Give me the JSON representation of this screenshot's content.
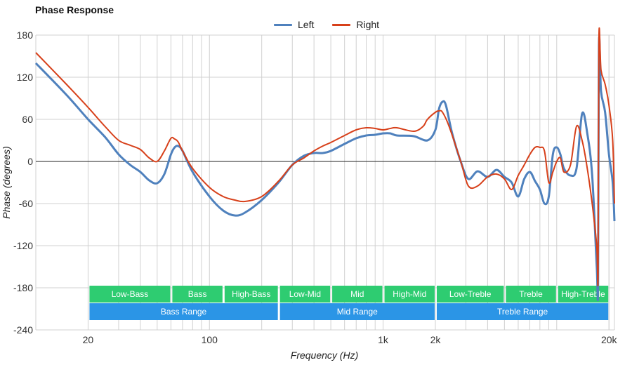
{
  "colors": {
    "left": "#4f81bd",
    "right": "#d7401a",
    "band_green": "#2ecc71",
    "band_blue": "#2b95e6",
    "grid": "#d0d0d0"
  },
  "chart_data": {
    "type": "line",
    "title": "Phase Response",
    "xlabel": "Frequency (Hz)",
    "ylabel": "Phase (degrees)",
    "x_scale": "log",
    "xlim": [
      10,
      21500
    ],
    "ylim": [
      -240,
      180
    ],
    "yticks": [
      180,
      120,
      60,
      0,
      -60,
      -120,
      -180,
      -240
    ],
    "xticks": [
      {
        "value": 20,
        "label": "20"
      },
      {
        "value": 100,
        "label": "100"
      },
      {
        "value": 1000,
        "label": "1k"
      },
      {
        "value": 2000,
        "label": "2k"
      },
      {
        "value": 20000,
        "label": "20k"
      }
    ],
    "legend_position": "top-center",
    "grid": true,
    "series": [
      {
        "name": "Left",
        "points": [
          [
            10,
            140
          ],
          [
            15,
            95
          ],
          [
            20,
            60
          ],
          [
            25,
            35
          ],
          [
            30,
            10
          ],
          [
            35,
            -5
          ],
          [
            40,
            -15
          ],
          [
            45,
            -27
          ],
          [
            50,
            -31
          ],
          [
            55,
            -18
          ],
          [
            60,
            10
          ],
          [
            63,
            20
          ],
          [
            66,
            22
          ],
          [
            70,
            15
          ],
          [
            80,
            -15
          ],
          [
            100,
            -50
          ],
          [
            120,
            -70
          ],
          [
            140,
            -77
          ],
          [
            160,
            -73
          ],
          [
            200,
            -55
          ],
          [
            250,
            -30
          ],
          [
            300,
            -5
          ],
          [
            350,
            8
          ],
          [
            400,
            12
          ],
          [
            450,
            12
          ],
          [
            500,
            15
          ],
          [
            600,
            25
          ],
          [
            700,
            33
          ],
          [
            800,
            37
          ],
          [
            900,
            38
          ],
          [
            1000,
            40
          ],
          [
            1100,
            40
          ],
          [
            1200,
            37
          ],
          [
            1500,
            36
          ],
          [
            1800,
            30
          ],
          [
            2000,
            45
          ],
          [
            2100,
            75
          ],
          [
            2200,
            85
          ],
          [
            2300,
            80
          ],
          [
            2500,
            40
          ],
          [
            2800,
            0
          ],
          [
            3100,
            -25
          ],
          [
            3500,
            -14
          ],
          [
            4000,
            -22
          ],
          [
            4500,
            -12
          ],
          [
            5000,
            -22
          ],
          [
            5500,
            -30
          ],
          [
            6000,
            -50
          ],
          [
            6500,
            -25
          ],
          [
            7000,
            -15
          ],
          [
            7500,
            -28
          ],
          [
            8000,
            -40
          ],
          [
            8500,
            -60
          ],
          [
            9000,
            -50
          ],
          [
            9500,
            10
          ],
          [
            10000,
            20
          ],
          [
            10500,
            10
          ],
          [
            11000,
            -10
          ],
          [
            12000,
            -20
          ],
          [
            13000,
            -10
          ],
          [
            14000,
            68
          ],
          [
            15000,
            40
          ],
          [
            16000,
            -20
          ],
          [
            17000,
            -150
          ],
          [
            17300,
            -175
          ],
          [
            17500,
            165
          ],
          [
            18000,
            100
          ],
          [
            19000,
            70
          ],
          [
            20000,
            10
          ],
          [
            21000,
            -30
          ],
          [
            21500,
            -85
          ]
        ]
      },
      {
        "name": "Right",
        "points": [
          [
            10,
            155
          ],
          [
            15,
            110
          ],
          [
            20,
            77
          ],
          [
            25,
            50
          ],
          [
            30,
            30
          ],
          [
            35,
            23
          ],
          [
            40,
            17
          ],
          [
            45,
            5
          ],
          [
            50,
            0
          ],
          [
            55,
            15
          ],
          [
            60,
            33
          ],
          [
            63,
            32
          ],
          [
            66,
            28
          ],
          [
            70,
            15
          ],
          [
            80,
            -10
          ],
          [
            100,
            -37
          ],
          [
            120,
            -50
          ],
          [
            140,
            -55
          ],
          [
            160,
            -57
          ],
          [
            200,
            -50
          ],
          [
            250,
            -28
          ],
          [
            300,
            -5
          ],
          [
            350,
            5
          ],
          [
            400,
            15
          ],
          [
            450,
            22
          ],
          [
            500,
            27
          ],
          [
            600,
            37
          ],
          [
            700,
            45
          ],
          [
            800,
            48
          ],
          [
            900,
            47
          ],
          [
            1000,
            45
          ],
          [
            1100,
            47
          ],
          [
            1200,
            48
          ],
          [
            1500,
            43
          ],
          [
            1700,
            50
          ],
          [
            1800,
            60
          ],
          [
            2000,
            70
          ],
          [
            2100,
            72
          ],
          [
            2200,
            70
          ],
          [
            2400,
            50
          ],
          [
            2800,
            0
          ],
          [
            3100,
            -35
          ],
          [
            3500,
            -35
          ],
          [
            4000,
            -22
          ],
          [
            4500,
            -18
          ],
          [
            5000,
            -25
          ],
          [
            5500,
            -40
          ],
          [
            6000,
            -20
          ],
          [
            6500,
            -5
          ],
          [
            7000,
            10
          ],
          [
            7500,
            20
          ],
          [
            8000,
            20
          ],
          [
            8500,
            15
          ],
          [
            9000,
            -30
          ],
          [
            9500,
            -15
          ],
          [
            10000,
            0
          ],
          [
            10500,
            5
          ],
          [
            11000,
            -15
          ],
          [
            12000,
            -5
          ],
          [
            13000,
            50
          ],
          [
            14000,
            30
          ],
          [
            15000,
            -10
          ],
          [
            16000,
            -60
          ],
          [
            17000,
            -120
          ],
          [
            17300,
            -160
          ],
          [
            17500,
            175
          ],
          [
            18000,
            130
          ],
          [
            19000,
            110
          ],
          [
            20000,
            80
          ],
          [
            21000,
            30
          ],
          [
            21500,
            -60
          ]
        ]
      }
    ],
    "range_bands": {
      "upper": [
        {
          "label": "Low-Bass",
          "from": 20,
          "to": 60
        },
        {
          "label": "Bass",
          "from": 60,
          "to": 120
        },
        {
          "label": "High-Bass",
          "from": 120,
          "to": 250
        },
        {
          "label": "Low-Mid",
          "from": 250,
          "to": 500
        },
        {
          "label": "Mid",
          "from": 500,
          "to": 1000
        },
        {
          "label": "High-Mid",
          "from": 1000,
          "to": 2000
        },
        {
          "label": "Low-Treble",
          "from": 2000,
          "to": 5000
        },
        {
          "label": "Treble",
          "from": 5000,
          "to": 10000
        },
        {
          "label": "High-Treble",
          "from": 10000,
          "to": 20000
        }
      ],
      "lower": [
        {
          "label": "Bass Range",
          "from": 20,
          "to": 250
        },
        {
          "label": "Mid Range",
          "from": 250,
          "to": 2000
        },
        {
          "label": "Treble Range",
          "from": 2000,
          "to": 20000
        }
      ]
    }
  }
}
